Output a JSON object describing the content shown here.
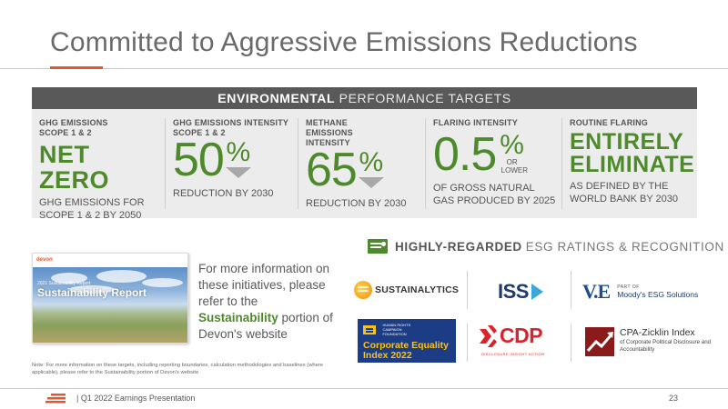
{
  "slide": {
    "title": "Committed to Aggressive Emissions Reductions",
    "panel_header_bold": "ENVIRONMENTAL",
    "panel_header_light": "PERFORMANCE TARGETS",
    "targets": [
      {
        "label": "GHG EMISSIONS SCOPE 1 & 2",
        "headline": "NET ZERO",
        "detail": "GHG EMISSIONS FOR SCOPE 1 & 2 BY 2050"
      },
      {
        "label": "GHG EMISSIONS INTENSITY SCOPE 1 & 2",
        "value": "50",
        "unit": "%",
        "detail": "REDUCTION BY 2030"
      },
      {
        "label": "METHANE EMISSIONS INTENSITY",
        "value": "65",
        "unit": "%",
        "detail": "REDUCTION BY 2030"
      },
      {
        "label": "FLARING INTENSITY",
        "value": "0.5",
        "unit": "%",
        "qualifier": "OR LOWER",
        "detail": "OF GROSS NATURAL GAS PRODUCED BY 2025"
      },
      {
        "label": "ROUTINE FLARING",
        "headline": "ENTIRELY ELIMINATE",
        "detail": "AS DEFINED BY THE WORLD BANK BY 2030"
      }
    ],
    "report": {
      "logo": "devon",
      "small_caption": "2021 Sustainability Report",
      "title": "Sustainability Report"
    },
    "info_pre": "For more information on these initiatives, please refer to the",
    "info_link": "Sustainability",
    "info_post": "portion of Devon's website",
    "note": "Note: For more information on these targets, including reporting boundaries, calculation methodologies and baselines (where applicable), please refer to the Sustainability portion of Devon's website.",
    "esg_heading_bold": "HIGHLY-REGARDED",
    "esg_heading_light": "ESG RATINGS & RECOGNITION",
    "logos": {
      "sustainalytics": "SUSTAINALYTICS",
      "iss": "ISS",
      "ve_mark": "V.E",
      "ve_part_of": "PART OF",
      "ve_moodys": "Moody's ESG Solutions",
      "hrc_small": "HUMAN RIGHTS CAMPAIGN FOUNDATION",
      "hrc_title": "Corporate Equality Index 2022",
      "cdp": "CDP",
      "cdp_sub": "DISCLOSURE INSIGHT ACTION",
      "cpa_title": "CPA-Zicklin Index",
      "cpa_sub": "of Corporate Political Disclosure and Accountability"
    },
    "footer": {
      "text": "|   Q1 2022 Earnings Presentation",
      "page": "23"
    },
    "colors": {
      "accent_orange": "#e4572e",
      "target_green": "#4e8a2c",
      "header_gray": "#595959",
      "panel_gray": "#ececec"
    }
  }
}
